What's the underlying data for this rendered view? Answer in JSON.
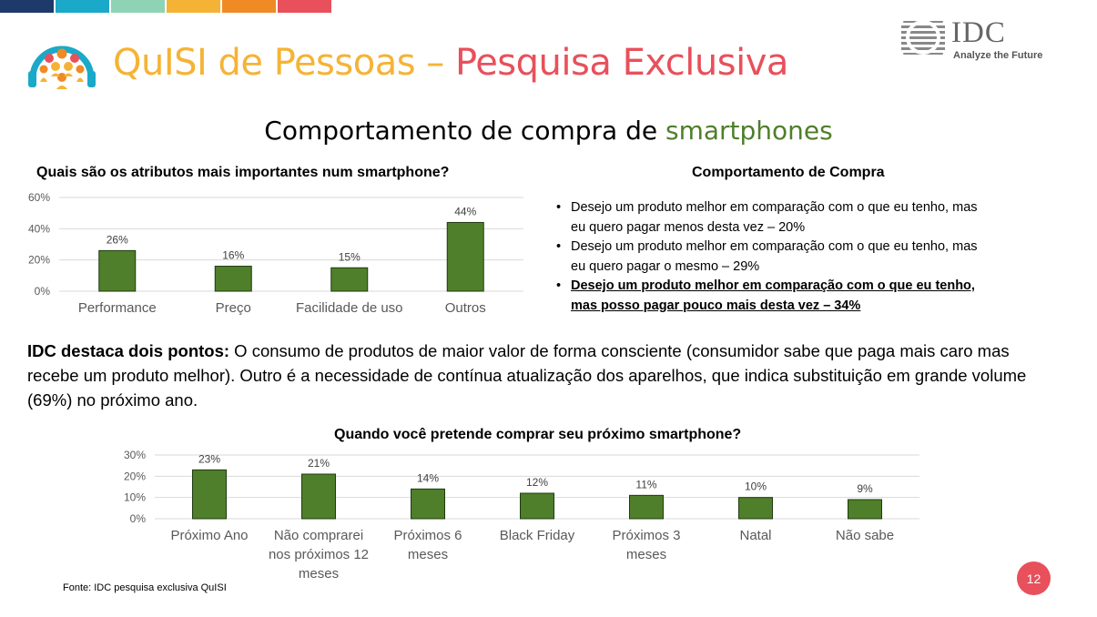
{
  "colors": {
    "bar": "#4F7F2A",
    "title_yellow": "#F5B335",
    "title_red": "#E8505B",
    "accent_green": "#4F7F2A",
    "top_strip": [
      "#1E3A6B",
      "#1BA9C9",
      "#8FD3B6",
      "#F5B335",
      "#F08A24",
      "#E8505B"
    ]
  },
  "header": {
    "title_part1": "QuISI de Pessoas",
    "title_sep": " – ",
    "title_part2": "Pesquisa Exclusiva",
    "logo_icon": "people-group-icon",
    "brand": "IDC",
    "brand_tagline": "Analyze the Future"
  },
  "subtitle": {
    "text": "Comportamento de compra de ",
    "highlight": "smartphones"
  },
  "right_panel": {
    "title": "Comportamento de Compra",
    "bullets": [
      {
        "line1": "Desejo um produto melhor em comparação com o que eu tenho, mas",
        "line2": "eu quero pagar menos desta vez – 20%"
      },
      {
        "line1": "Desejo um produto melhor em comparação com o que eu tenho, mas",
        "line2": "eu quero pagar o mesmo – 29%"
      },
      {
        "line1": "Desejo um produto melhor em comparação com o que eu tenho,",
        "line2": "mas posso pagar pouco mais desta vez – 34%"
      }
    ]
  },
  "highlight": {
    "lead": "IDC destaca dois pontos:",
    "text": " O consumo de produtos de maior valor de forma consciente (consumidor sabe que  paga mais caro mas  recebe um produto melhor). Outro é a necessidade de contínua atualização dos aparelhos, que indica substituição em grande volume (69%) no próximo ano."
  },
  "footer": {
    "source": "Fonte: IDC pesquisa exclusiva QuISI",
    "page": "12"
  },
  "chart_data": [
    {
      "type": "bar",
      "title": "Quais são os atributos mais importantes num smartphone?",
      "categories": [
        "Performance",
        "Preço",
        "Facilidade de uso",
        "Outros"
      ],
      "values": [
        26,
        16,
        15,
        44
      ],
      "value_labels": [
        "26%",
        "16%",
        "15%",
        "44%"
      ],
      "ylim": [
        0,
        60
      ],
      "yticks": [
        "0%",
        "20%",
        "40%",
        "60%"
      ],
      "ytick_values": [
        0,
        20,
        40,
        60
      ],
      "grid": true,
      "xlabel": "",
      "ylabel": ""
    },
    {
      "type": "bar",
      "title": "Quando você pretende comprar seu próximo smartphone?",
      "categories": [
        "Próximo Ano",
        "Não comprarei nos próximos 12 meses",
        "Próximos 6 meses",
        "Black Friday",
        "Próximos 3 meses",
        "Natal",
        "Não sabe"
      ],
      "category_lines": [
        [
          "Próximo Ano"
        ],
        [
          "Não comprarei",
          "nos próximos 12",
          "meses"
        ],
        [
          "Próximos 6",
          "meses"
        ],
        [
          "Black Friday"
        ],
        [
          "Próximos 3",
          "meses"
        ],
        [
          "Natal"
        ],
        [
          "Não sabe"
        ]
      ],
      "values": [
        23,
        21,
        14,
        12,
        11,
        10,
        9
      ],
      "value_labels": [
        "23%",
        "21%",
        "14%",
        "12%",
        "11%",
        "10%",
        "9%"
      ],
      "ylim": [
        0,
        30
      ],
      "yticks": [
        "0%",
        "10%",
        "20%",
        "30%"
      ],
      "ytick_values": [
        0,
        10,
        20,
        30
      ],
      "grid": true,
      "xlabel": "",
      "ylabel": ""
    }
  ]
}
